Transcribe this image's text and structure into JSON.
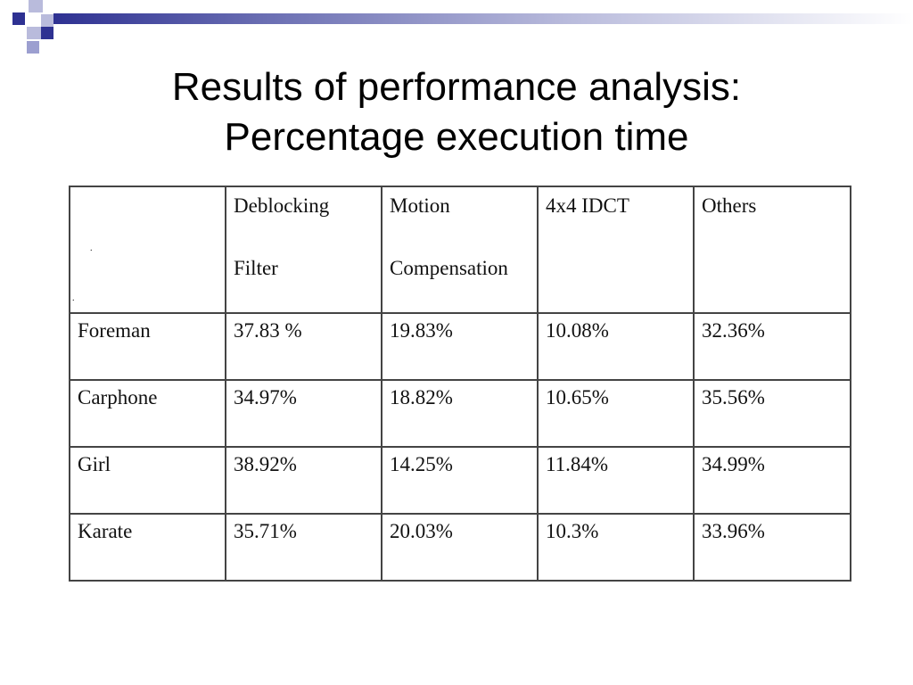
{
  "title_line1": "Results of performance analysis:",
  "title_line2": "Percentage execution time",
  "colors": {
    "deco_dark": "#2e3192",
    "deco_light": "#9c9fd0"
  },
  "table": {
    "headers": [
      {
        "line1": "",
        "line2": ""
      },
      {
        "line1": "Deblocking",
        "line2": "Filter"
      },
      {
        "line1": "Motion",
        "line2": "Compensation"
      },
      {
        "line1": "4x4 IDCT",
        "line2": ""
      },
      {
        "line1": "Others",
        "line2": ""
      }
    ],
    "rows": [
      {
        "name": "Foreman",
        "values": [
          "37.83 %",
          "19.83%",
          "10.08%",
          "32.36%"
        ]
      },
      {
        "name": "Carphone",
        "values": [
          "34.97%",
          "18.82%",
          "10.65%",
          "35.56%"
        ]
      },
      {
        "name": "Girl",
        "values": [
          "38.92%",
          "14.25%",
          "11.84%",
          "34.99%"
        ]
      },
      {
        "name": "Karate",
        "values": [
          "35.71%",
          "20.03%",
          "10.3%",
          "33.96%"
        ]
      }
    ]
  }
}
